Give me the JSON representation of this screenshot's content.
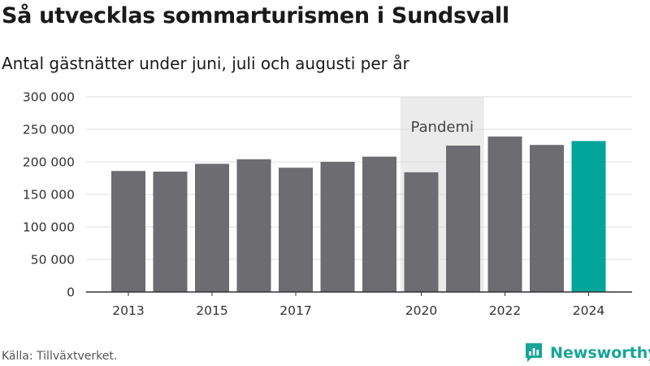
{
  "title": "Så utvecklas sommarturismen i Sundsvall",
  "subtitle": "Antal gästnätter under juni, juli och augusti per år",
  "source": "Källa: Tillväxtverket.",
  "brand": {
    "name": "Newsworthy",
    "icon": "newsworthy-chat-icon",
    "color": "#16a596"
  },
  "colors": {
    "bar": "#6d6c71",
    "highlight": "#00a498",
    "band": "#ebebeb",
    "grid": "#dddddd",
    "axis": "#333333"
  },
  "chart_data": {
    "type": "bar",
    "categories": [
      "2013",
      "2014",
      "2015",
      "2016",
      "2017",
      "2018",
      "2019",
      "2020",
      "2021",
      "2022",
      "2023",
      "2024"
    ],
    "values": [
      186000,
      185000,
      197000,
      204000,
      191000,
      200000,
      208000,
      184000,
      225000,
      239000,
      226000,
      232000
    ],
    "x_tick_labels": [
      "2013",
      "2015",
      "2017",
      "2020",
      "2022",
      "2024"
    ],
    "y_ticks": [
      0,
      50000,
      100000,
      150000,
      200000,
      250000,
      300000
    ],
    "y_tick_labels": [
      "0",
      "50 000",
      "100 000",
      "150 000",
      "200 000",
      "250 000",
      "300 000"
    ],
    "ylim": [
      0,
      300000
    ],
    "highlight_category": "2024",
    "annotation": {
      "label": "Pandemi",
      "from": "2020",
      "to": "2021"
    },
    "grid": true
  }
}
